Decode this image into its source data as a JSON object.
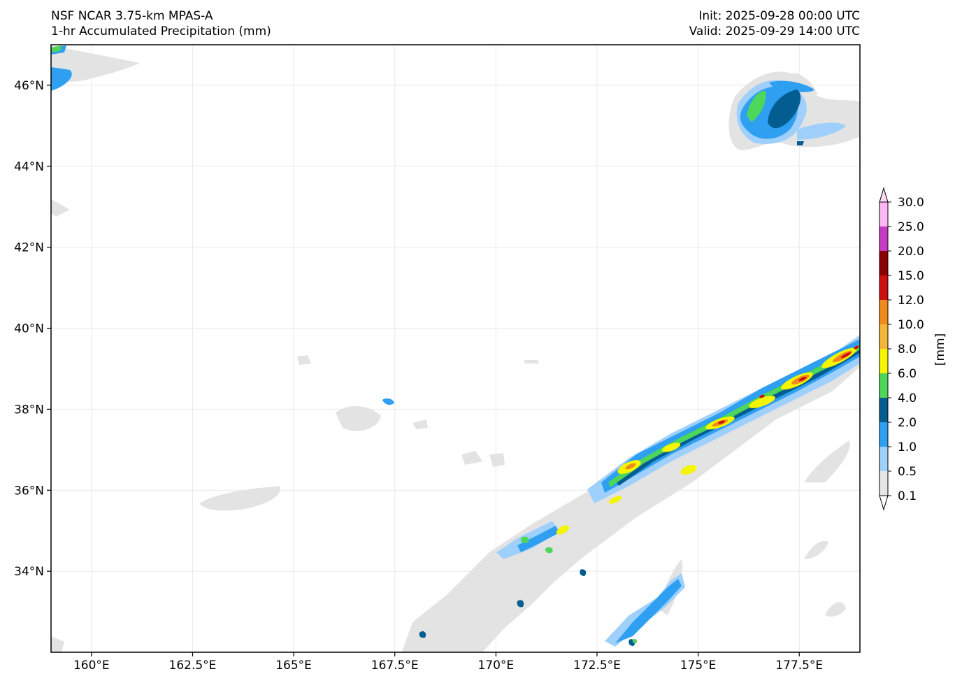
{
  "header": {
    "model": "NSF NCAR 3.75-km MPAS-A",
    "field": "1-hr Accumulated Precipitation (mm)",
    "init": "Init: 2025-09-28 00:00 UTC",
    "valid": "Valid: 2025-09-29 14:00 UTC"
  },
  "map": {
    "lon_range": [
      159.0,
      179.0
    ],
    "lat_range": [
      32.0,
      47.0
    ],
    "lon_ticks": [
      {
        "value": 160.0,
        "label": "160°E"
      },
      {
        "value": 162.5,
        "label": "162.5°E"
      },
      {
        "value": 165.0,
        "label": "165°E"
      },
      {
        "value": 167.5,
        "label": "167.5°E"
      },
      {
        "value": 170.0,
        "label": "170°E"
      },
      {
        "value": 172.5,
        "label": "172.5°E"
      },
      {
        "value": 175.0,
        "label": "175°E"
      },
      {
        "value": 177.5,
        "label": "177.5°E"
      }
    ],
    "lat_ticks": [
      {
        "value": 34,
        "label": "34°N"
      },
      {
        "value": 36,
        "label": "36°N"
      },
      {
        "value": 38,
        "label": "38°N"
      },
      {
        "value": 40,
        "label": "40°N"
      },
      {
        "value": 42,
        "label": "42°N"
      },
      {
        "value": 44,
        "label": "44°N"
      },
      {
        "value": 46,
        "label": "46°N"
      }
    ],
    "grid": true
  },
  "colorbar": {
    "unit_label": "[mm]",
    "levels": [
      "0.1",
      "0.5",
      "1.0",
      "2.0",
      "4.0",
      "6.0",
      "8.0",
      "10.0",
      "12.0",
      "15.0",
      "20.0",
      "25.0",
      "30.0"
    ],
    "colors": [
      "#e6e6e6",
      "#9fd0fb",
      "#2f9ff2",
      "#045d91",
      "#4dd65a",
      "#f5f500",
      "#f5b53a",
      "#f08a1a",
      "#cc0f0f",
      "#8b0000",
      "#c43bc4",
      "#ffb7f5"
    ],
    "under_color": "#ffffff",
    "over_color": "#ffd9f8"
  }
}
